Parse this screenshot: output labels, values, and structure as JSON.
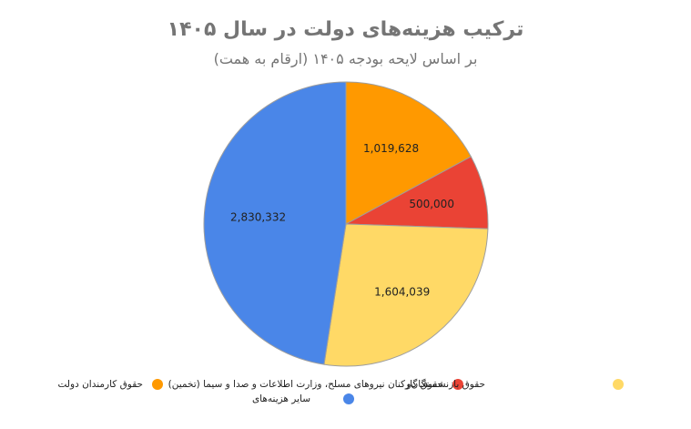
{
  "header": {
    "title": "ترکیب هزینه‌های دولت در سال ۱۴۰۵",
    "subtitle": "بر اساس لایحه بودجه ۱۴۰۵ (ارقام به همت)"
  },
  "legend": [
    {
      "label": "حقوق کارمندان دولت",
      "color": "#ff9900"
    },
    {
      "label": "حقوق گارکنان نیروهای مسلح، وزارت اطلاعات و صدا و سیما (تخمین)",
      "color": "#ea4335"
    },
    {
      "label": "حقوق بازنشستگان‌و",
      "color": "#ffd966"
    },
    {
      "label": "سایر هزینه‌های",
      "color": "#4a86e8"
    }
  ],
  "chart_data": {
    "type": "pie",
    "title": "ترکیب هزینه‌های دولت در سال ۱۴۰۵",
    "subtitle": "بر اساس لایحه بودجه ۱۴۰۵ (ارقام به همت)",
    "categories": [
      "حقوق کارمندان دولت",
      "حقوق گارکنان نیروهای مسلح، وزارت اطلاعات و صدا و سیما (تخمین)",
      "حقوق بازنشستگان‌و",
      "سایر هزینه‌های"
    ],
    "values": [
      1019628,
      500000,
      1604039,
      2830332
    ],
    "value_labels": [
      "1,019,628",
      "500,000",
      "1,604,039",
      "2,830,332"
    ],
    "colors": [
      "#ff9900",
      "#ea4335",
      "#ffd966",
      "#4a86e8"
    ],
    "legend_position": "bottom",
    "start_angle": "top, clockwise"
  }
}
